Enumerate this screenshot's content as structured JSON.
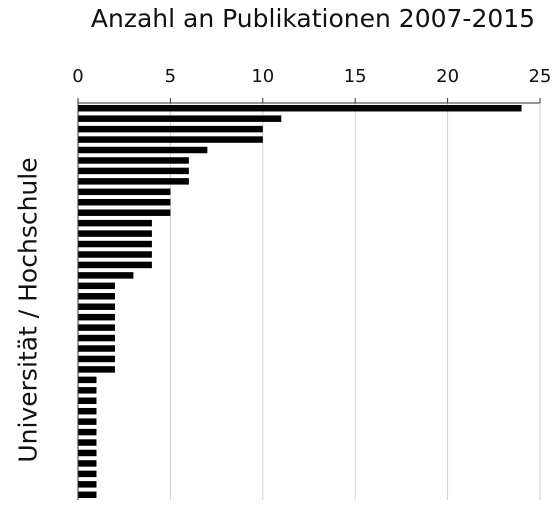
{
  "chart_data": {
    "type": "bar",
    "orientation": "horizontal",
    "title": "Anzahl an Publikationen 2007-2015",
    "xlabel": "",
    "ylabel": "Universität / Hochschule",
    "xlim": [
      0,
      25
    ],
    "xticks": [
      0,
      5,
      10,
      15,
      20,
      25
    ],
    "x_axis_position": "top",
    "grid": "vertical",
    "values": [
      24,
      11,
      10,
      10,
      7,
      6,
      6,
      6,
      5,
      5,
      5,
      4,
      4,
      4,
      4,
      4,
      3,
      2,
      2,
      2,
      2,
      2,
      2,
      2,
      2,
      2,
      1,
      1,
      1,
      1,
      1,
      1,
      1,
      1,
      1,
      1,
      1,
      1
    ],
    "bar_color": "#000000",
    "grid_color": "#d0d0d0"
  }
}
